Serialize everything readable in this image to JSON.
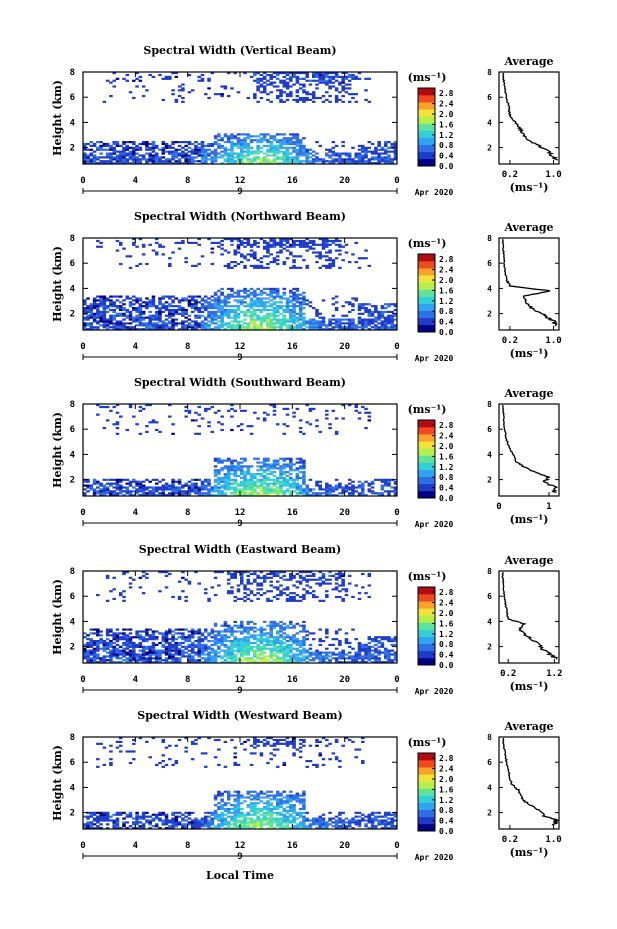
{
  "figure": {
    "xlabel": "Local Time",
    "date_suffix": "Apr 2020",
    "day_label": "9",
    "unit_label": "(ms⁻¹)",
    "avg_title": "Average",
    "ylabel": "Height (km)"
  },
  "colormap": [
    "#000080",
    "#1f3cc8",
    "#2f6fe6",
    "#33a2f0",
    "#32d0d6",
    "#5fe39a",
    "#b6ef4c",
    "#f2e33a",
    "#f7a22b",
    "#ee4a20",
    "#b10c12"
  ],
  "chart_data": [
    {
      "type": "heatmap",
      "title": "Spectral Width (Vertical Beam)",
      "x_ticks": [
        "0",
        "4",
        "8",
        "12",
        "16",
        "20",
        "0"
      ],
      "y_ticks": [
        "2",
        "4",
        "6",
        "8"
      ],
      "xlim": [
        0,
        24
      ],
      "ylim": [
        0.7,
        8
      ],
      "colorbar_ticks": [
        "0.0",
        "0.4",
        "0.8",
        "1.2",
        "1.6",
        "2.0",
        "2.4",
        "2.8"
      ],
      "colorbar_range": [
        0,
        3.0
      ],
      "features": {
        "low_layer_top": 2.5,
        "upper_cloud": [
          [
            3,
            23,
            7,
            8
          ]
        ]
      },
      "profile": {
        "x_ticks": [
          "0.2",
          "1.0"
        ],
        "xlim": [
          0,
          1.1
        ],
        "y_ticks": [
          "2",
          "4",
          "6",
          "8"
        ],
        "ylim": [
          0.7,
          8
        ],
        "x": [
          1.05,
          0.95,
          0.9,
          0.7,
          0.55,
          0.45,
          0.4,
          0.35,
          0.25,
          0.2,
          0.18,
          0.15,
          0.12,
          0.1,
          0.08,
          0.08
        ],
        "y": [
          1,
          1.4,
          1.8,
          2.2,
          2.6,
          3.0,
          3.4,
          3.8,
          4.2,
          4.6,
          5.2,
          5.8,
          6.4,
          7.0,
          7.5,
          8.0
        ]
      }
    },
    {
      "type": "heatmap",
      "title": "Spectral Width (Northward Beam)",
      "x_ticks": [
        "0",
        "4",
        "8",
        "12",
        "16",
        "20",
        "0"
      ],
      "y_ticks": [
        "2",
        "4",
        "6",
        "8"
      ],
      "xlim": [
        0,
        24
      ],
      "ylim": [
        0.7,
        8
      ],
      "colorbar_ticks": [
        "0.0",
        "0.4",
        "0.8",
        "1.2",
        "1.6",
        "2.0",
        "2.4",
        "2.8"
      ],
      "colorbar_range": [
        0,
        3.0
      ],
      "features": {
        "low_layer_top": 3.5
      },
      "profile": {
        "x_ticks": [
          "0.2",
          "1.0"
        ],
        "xlim": [
          0,
          1.1
        ],
        "y_ticks": [
          "2",
          "4",
          "6",
          "8"
        ],
        "ylim": [
          0.7,
          8
        ],
        "x": [
          1.05,
          1.0,
          0.85,
          0.7,
          0.55,
          0.5,
          0.45,
          0.95,
          0.2,
          0.15,
          0.12,
          0.1,
          0.1,
          0.08,
          0.08,
          0.06
        ],
        "y": [
          1,
          1.4,
          1.8,
          2.2,
          2.6,
          3.0,
          3.4,
          3.8,
          4.2,
          4.6,
          5.2,
          5.8,
          6.4,
          7.0,
          7.5,
          8.0
        ]
      }
    },
    {
      "type": "heatmap",
      "title": "Spectral Width (Southward Beam)",
      "x_ticks": [
        "0",
        "4",
        "8",
        "12",
        "16",
        "20",
        "0"
      ],
      "y_ticks": [
        "2",
        "4",
        "6",
        "8"
      ],
      "xlim": [
        0,
        24
      ],
      "ylim": [
        0.7,
        8
      ],
      "colorbar_ticks": [
        "0.0",
        "0.4",
        "0.8",
        "1.2",
        "1.6",
        "2.0",
        "2.4",
        "2.8"
      ],
      "colorbar_range": [
        0,
        3.0
      ],
      "features": {
        "low_layer_top": 2.0
      },
      "profile": {
        "x_ticks": [
          "0",
          "1"
        ],
        "xlim": [
          0,
          1.2
        ],
        "y_ticks": [
          "2",
          "4",
          "6",
          "8"
        ],
        "ylim": [
          0.7,
          8
        ],
        "x": [
          1.1,
          1.15,
          0.9,
          1.0,
          0.7,
          0.5,
          0.35,
          0.3,
          0.25,
          0.2,
          0.15,
          0.12,
          0.1,
          0.1,
          0.08,
          0.08
        ],
        "y": [
          1,
          1.4,
          1.8,
          2.2,
          2.6,
          3.0,
          3.4,
          3.8,
          4.2,
          4.6,
          5.2,
          5.8,
          6.4,
          7.0,
          7.5,
          8.0
        ]
      }
    },
    {
      "type": "heatmap",
      "title": "Spectral Width (Eastward Beam)",
      "x_ticks": [
        "0",
        "4",
        "8",
        "12",
        "16",
        "20",
        "0"
      ],
      "y_ticks": [
        "2",
        "4",
        "6",
        "8"
      ],
      "xlim": [
        0,
        24
      ],
      "ylim": [
        0.7,
        8
      ],
      "colorbar_ticks": [
        "0.0",
        "0.4",
        "0.8",
        "1.2",
        "1.6",
        "2.0",
        "2.4",
        "2.8"
      ],
      "colorbar_range": [
        0,
        3.0
      ],
      "features": {
        "low_layer_top": 3.5
      },
      "profile": {
        "x_ticks": [
          "0.2",
          "1.2"
        ],
        "xlim": [
          0,
          1.3
        ],
        "y_ticks": [
          "2",
          "4",
          "6",
          "8"
        ],
        "ylim": [
          0.7,
          8
        ],
        "x": [
          1.25,
          1.1,
          0.95,
          0.85,
          0.7,
          0.55,
          0.45,
          0.55,
          0.2,
          0.18,
          0.15,
          0.12,
          0.1,
          0.1,
          0.08,
          0.08
        ],
        "y": [
          1,
          1.4,
          1.8,
          2.2,
          2.6,
          3.0,
          3.4,
          3.8,
          4.2,
          4.6,
          5.2,
          5.8,
          6.4,
          7.0,
          7.5,
          8.0
        ]
      }
    },
    {
      "type": "heatmap",
      "title": "Spectral Width (Westward Beam)",
      "x_ticks": [
        "0",
        "4",
        "8",
        "12",
        "16",
        "20",
        "0"
      ],
      "y_ticks": [
        "2",
        "4",
        "6",
        "8"
      ],
      "xlim": [
        0,
        24
      ],
      "ylim": [
        0.7,
        8
      ],
      "colorbar_ticks": [
        "0.0",
        "0.4",
        "0.8",
        "1.2",
        "1.6",
        "2.0",
        "2.4",
        "2.8"
      ],
      "colorbar_range": [
        0,
        3.0
      ],
      "features": {
        "low_layer_top": 2.0
      },
      "profile": {
        "x_ticks": [
          "0.2",
          "1.0"
        ],
        "xlim": [
          0,
          1.1
        ],
        "y_ticks": [
          "2",
          "4",
          "6",
          "8"
        ],
        "ylim": [
          0.7,
          8
        ],
        "x": [
          1.0,
          1.05,
          0.8,
          0.75,
          0.55,
          0.45,
          0.4,
          0.35,
          0.25,
          0.2,
          0.18,
          0.15,
          0.12,
          0.1,
          0.08,
          0.08
        ],
        "y": [
          1,
          1.4,
          1.8,
          2.2,
          2.6,
          3.0,
          3.4,
          3.8,
          4.2,
          4.6,
          5.2,
          5.8,
          6.4,
          7.0,
          7.5,
          8.0
        ]
      }
    }
  ]
}
